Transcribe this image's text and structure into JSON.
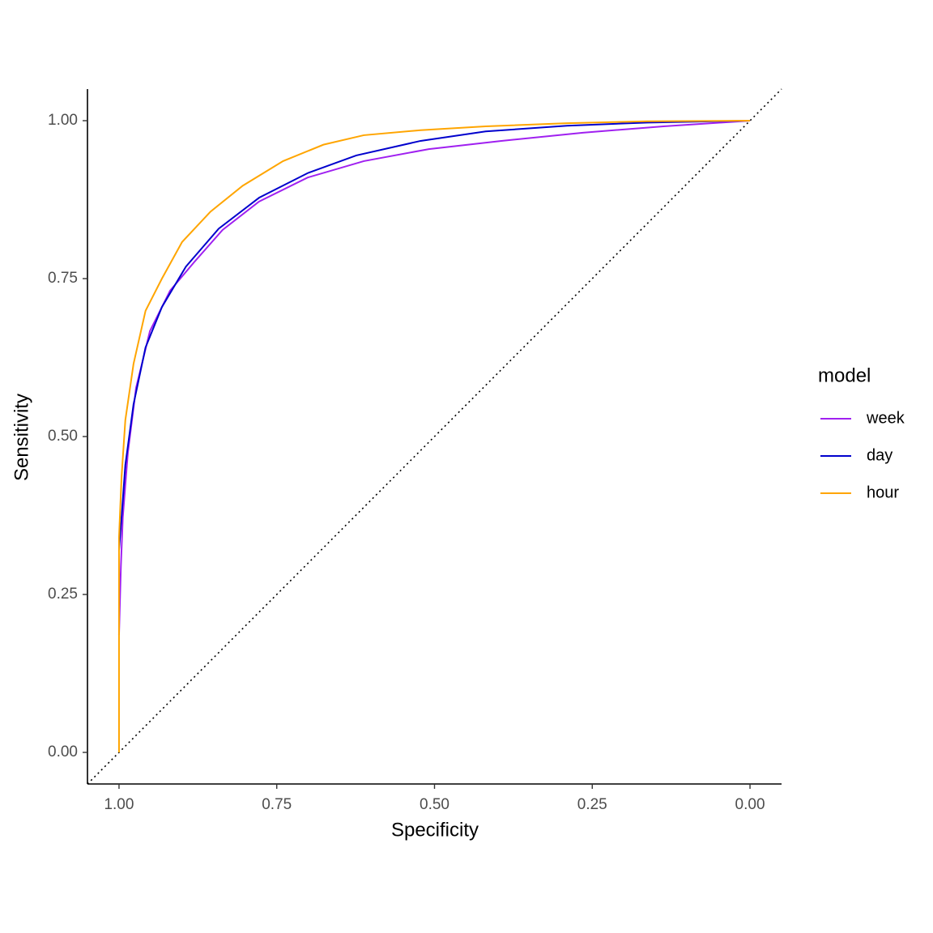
{
  "chart_data": {
    "type": "line",
    "x_label": "Specificity",
    "y_label": "Sensitivity",
    "xlim": [
      1.05,
      -0.05
    ],
    "ylim": [
      -0.05,
      1.05
    ],
    "xticks": [
      {
        "value": 1,
        "label": "1.00"
      },
      {
        "value": 0.75,
        "label": "0.75"
      },
      {
        "value": 0.5,
        "label": "0.50"
      },
      {
        "value": 0.25,
        "label": "0.25"
      },
      {
        "value": 0,
        "label": "0.00"
      }
    ],
    "yticks": [
      {
        "value": 0,
        "label": "0.00"
      },
      {
        "value": 0.25,
        "label": "0.25"
      },
      {
        "value": 0.5,
        "label": "0.50"
      },
      {
        "value": 0.75,
        "label": "0.75"
      },
      {
        "value": 1,
        "label": "1.00"
      }
    ],
    "legend_title": "model",
    "series": [
      {
        "name": "week",
        "color": "#a020f0",
        "x": [
          1,
          0.997,
          0.994,
          0.986,
          0.973,
          0.951,
          0.919,
          0.881,
          0.836,
          0.778,
          0.701,
          0.612,
          0.509,
          0.394,
          0.265,
          0.137,
          0
        ],
        "values": [
          0.186,
          0.295,
          0.372,
          0.474,
          0.577,
          0.667,
          0.731,
          0.776,
          0.827,
          0.872,
          0.91,
          0.936,
          0.955,
          0.968,
          0.981,
          0.991,
          1
        ]
      },
      {
        "name": "day",
        "color": "#0000cd",
        "x": [
          1,
          0.996,
          0.99,
          0.977,
          0.958,
          0.932,
          0.894,
          0.842,
          0.778,
          0.701,
          0.624,
          0.522,
          0.419,
          0.29,
          0.163,
          0
        ],
        "values": [
          0.32,
          0.372,
          0.455,
          0.551,
          0.641,
          0.705,
          0.769,
          0.829,
          0.878,
          0.917,
          0.945,
          0.968,
          0.983,
          0.992,
          0.997,
          1
        ]
      },
      {
        "name": "hour",
        "color": "#ffa500",
        "x": [
          1,
          1,
          0.996,
          0.99,
          0.977,
          0.958,
          0.932,
          0.9,
          0.855,
          0.804,
          0.74,
          0.676,
          0.612,
          0.522,
          0.419,
          0.29,
          0.163,
          0
        ],
        "values": [
          0,
          0.34,
          0.436,
          0.526,
          0.615,
          0.699,
          0.75,
          0.808,
          0.856,
          0.897,
          0.936,
          0.962,
          0.977,
          0.985,
          0.991,
          0.996,
          0.999,
          1
        ]
      }
    ]
  }
}
